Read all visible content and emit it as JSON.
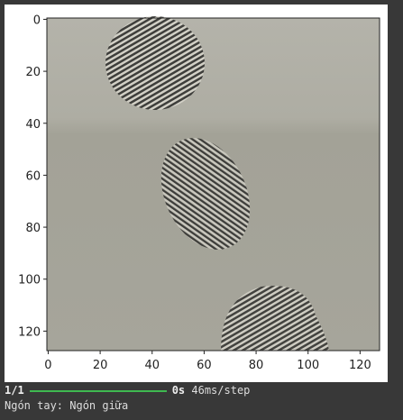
{
  "figure": {
    "xlim": [
      -0.5,
      127.5
    ],
    "ylim": [
      127.5,
      -0.5
    ],
    "xticks": [
      0,
      20,
      40,
      60,
      80,
      100,
      120
    ],
    "yticks": [
      0,
      20,
      40,
      60,
      80,
      100,
      120
    ]
  },
  "console": {
    "progress": "1/1",
    "timing": "0s",
    "step": "46ms/step",
    "result": "Ngón tay: Ngón giữa"
  }
}
